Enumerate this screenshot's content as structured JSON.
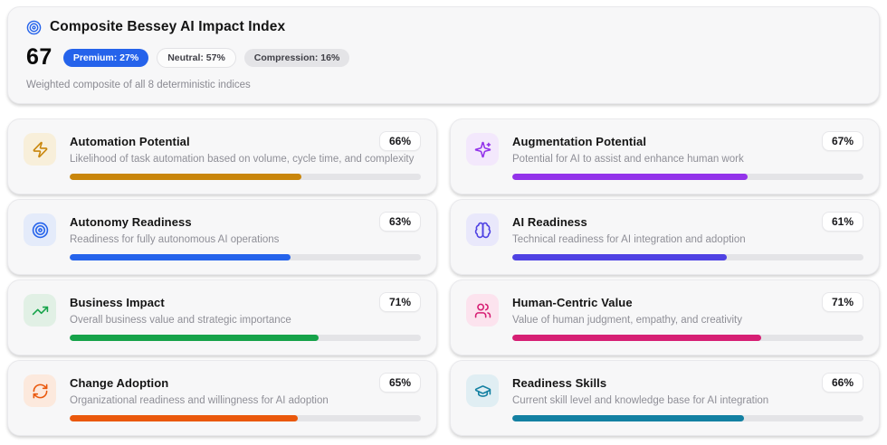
{
  "header": {
    "title": "Composite Bessey AI Impact Index",
    "score": "67",
    "badges": [
      {
        "label": "Premium: 27%",
        "style": "primary",
        "color": "#2563eb"
      },
      {
        "label": "Neutral: 57%",
        "style": "outline",
        "color": "#fcfcfc"
      },
      {
        "label": "Compression: 16%",
        "style": "muted",
        "color": "#e4e4e7"
      }
    ],
    "subtitle": "Weighted composite of all 8 deterministic indices",
    "icon": "target-icon"
  },
  "indices": [
    {
      "name": "Automation Potential",
      "value": 66,
      "value_label": "66%",
      "description": "Likelihood of task automation based on volume, cycle time, and complexity",
      "icon": "zap-icon",
      "color": "#c9860b",
      "tile_bg": "#f8efda"
    },
    {
      "name": "Augmentation Potential",
      "value": 67,
      "value_label": "67%",
      "description": "Potential for AI to assist and enhance human work",
      "icon": "sparkles-icon",
      "color": "#9333ea",
      "tile_bg": "#f3e8fc"
    },
    {
      "name": "Autonomy Readiness",
      "value": 63,
      "value_label": "63%",
      "description": "Readiness for fully autonomous AI operations",
      "icon": "target-icon",
      "color": "#2563eb",
      "tile_bg": "#e4ebfa"
    },
    {
      "name": "AI Readiness",
      "value": 61,
      "value_label": "61%",
      "description": "Technical readiness for AI integration and adoption",
      "icon": "brain-icon",
      "color": "#4f42e3",
      "tile_bg": "#e9e8fb"
    },
    {
      "name": "Business Impact",
      "value": 71,
      "value_label": "71%",
      "description": "Overall business value and strategic importance",
      "icon": "trending-up-icon",
      "color": "#16a34a",
      "tile_bg": "#e1f0e5"
    },
    {
      "name": "Human-Centric Value",
      "value": 71,
      "value_label": "71%",
      "description": "Value of human judgment, empathy, and creativity",
      "icon": "users-icon",
      "color": "#d61f74",
      "tile_bg": "#fce3ee"
    },
    {
      "name": "Change Adoption",
      "value": 65,
      "value_label": "65%",
      "description": "Organizational readiness and willingness for AI adoption",
      "icon": "refresh-icon",
      "color": "#ea580c",
      "tile_bg": "#fce9dd"
    },
    {
      "name": "Readiness Skills",
      "value": 66,
      "value_label": "66%",
      "description": "Current skill level and knowledge base for AI integration",
      "icon": "graduation-cap-icon",
      "color": "#1380a2",
      "tile_bg": "#e0eef3"
    }
  ]
}
